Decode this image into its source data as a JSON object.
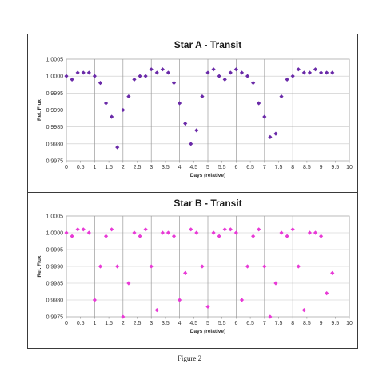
{
  "caption": "Figure 2",
  "chart_data": [
    {
      "type": "scatter",
      "title": "Star A - Transit",
      "xlabel": "Days (relative)",
      "ylabel": "Rel. Flux",
      "xlim": [
        0,
        10
      ],
      "ylim": [
        0.9975,
        1.0005
      ],
      "xticks": [
        "0",
        "0.5",
        "1",
        "1.5",
        "2",
        "2.5",
        "3",
        "3.5",
        "4",
        "4.5",
        "5",
        "5.5",
        "6",
        "6.5",
        "7",
        "7.5",
        "8",
        "8.5",
        "9",
        "9.5",
        "10"
      ],
      "yticks": [
        "0.9975",
        "0.9980",
        "0.9985",
        "0.9990",
        "0.9995",
        "1.0000",
        "1.0005"
      ],
      "vertical_gridlines_every": 1,
      "marker": "diamond",
      "color": "#6a2aa8",
      "x": [
        0.0,
        0.2,
        0.4,
        0.6,
        0.8,
        1.0,
        1.2,
        1.4,
        1.6,
        1.8,
        2.0,
        2.2,
        2.4,
        2.6,
        2.8,
        3.0,
        3.2,
        3.4,
        3.6,
        3.8,
        4.0,
        4.2,
        4.4,
        4.6,
        4.8,
        5.0,
        5.2,
        5.4,
        5.6,
        5.8,
        6.0,
        6.2,
        6.4,
        6.6,
        6.8,
        7.0,
        7.2,
        7.4,
        7.6,
        7.8,
        8.0,
        8.2,
        8.4,
        8.6,
        8.8,
        9.0,
        9.2,
        9.4
      ],
      "y": [
        1.0,
        0.9999,
        1.0001,
        1.0001,
        1.0001,
        1.0,
        0.9998,
        0.9992,
        0.9988,
        0.9979,
        0.999,
        0.9994,
        0.9999,
        1.0,
        1.0,
        1.0002,
        1.0001,
        1.0002,
        1.0001,
        0.9998,
        0.9992,
        0.9986,
        0.998,
        0.9984,
        0.9994,
        1.0001,
        1.0002,
        1.0,
        0.9999,
        1.0001,
        1.0002,
        1.0001,
        1.0,
        0.9998,
        0.9992,
        0.9988,
        0.9982,
        0.9983,
        0.9994,
        0.9999,
        1.0,
        1.0002,
        1.0001,
        1.0001,
        1.0002,
        1.0001,
        1.0001,
        1.0001
      ]
    },
    {
      "type": "scatter",
      "title": "Star B - Transit",
      "xlabel": "Days (relative)",
      "ylabel": "Rel. Flux",
      "xlim": [
        0,
        10
      ],
      "ylim": [
        0.9975,
        1.0005
      ],
      "xticks": [
        "0",
        "0.5",
        "1",
        "1.5",
        "2",
        "2.5",
        "3",
        "3.5",
        "4",
        "4.5",
        "5",
        "5.5",
        "6",
        "6.5",
        "7",
        "7.5",
        "8",
        "8.5",
        "9",
        "9.5",
        "10"
      ],
      "yticks": [
        "0.9975",
        "0.9980",
        "0.9985",
        "0.9990",
        "0.9995",
        "1.0000",
        "1.0005"
      ],
      "vertical_gridlines_every": 1,
      "marker": "diamond",
      "color": "#e83ad6",
      "x": [
        0.0,
        0.2,
        0.4,
        0.6,
        0.8,
        1.0,
        1.2,
        1.4,
        1.6,
        1.8,
        2.0,
        2.2,
        2.4,
        2.6,
        2.8,
        3.0,
        3.2,
        3.4,
        3.6,
        3.8,
        4.0,
        4.2,
        4.4,
        4.6,
        4.8,
        5.0,
        5.2,
        5.4,
        5.6,
        5.8,
        6.0,
        6.2,
        6.4,
        6.6,
        6.8,
        7.0,
        7.2,
        7.4,
        7.6,
        7.8,
        8.0,
        8.2,
        8.4,
        8.6,
        8.8,
        9.0,
        9.2,
        9.4
      ],
      "y": [
        1.0,
        0.9999,
        1.0001,
        1.0001,
        1.0,
        0.998,
        0.999,
        0.9999,
        1.0001,
        0.999,
        0.9975,
        0.9985,
        1.0,
        0.9999,
        1.0001,
        0.999,
        0.9977,
        1.0,
        1.0,
        0.9999,
        0.998,
        0.9988,
        1.0001,
        1.0,
        0.999,
        0.9978,
        1.0,
        0.9999,
        1.0001,
        1.0001,
        1.0,
        0.998,
        0.999,
        0.9999,
        1.0001,
        0.999,
        0.9975,
        0.9985,
        1.0,
        0.9999,
        1.0001,
        0.999,
        0.9977,
        1.0,
        1.0,
        0.9999,
        0.9982,
        0.9988
      ]
    }
  ]
}
